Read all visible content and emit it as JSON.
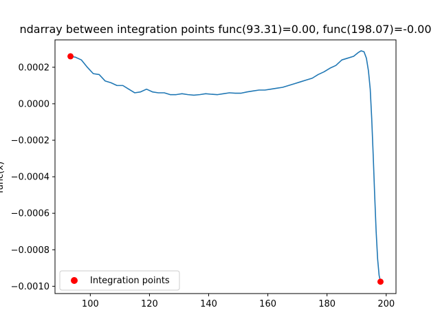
{
  "chart_data": {
    "type": "line",
    "title": "ndarray between integration points func(93.31)=0.00, func(198.07)=-0.00",
    "xlabel": "",
    "ylabel": "func(x)",
    "xlim": [
      88.07,
      203.31
    ],
    "ylim": [
      -0.00104,
      0.00035
    ],
    "grid": false,
    "legend_position": "lower-left",
    "x_ticks": [
      100,
      120,
      140,
      160,
      180,
      200
    ],
    "x_tick_labels": [
      "100",
      "120",
      "140",
      "160",
      "180",
      "200"
    ],
    "y_ticks": [
      0.0002,
      0.0,
      -0.0002,
      -0.0004,
      -0.0006,
      -0.0008,
      -0.001
    ],
    "y_tick_labels": [
      "0.0002",
      "0.0000",
      "−0.0002",
      "−0.0004",
      "−0.0006",
      "−0.0008",
      "−0.0010"
    ],
    "line_color": "#1f77b4",
    "marker_color": "#ff0000",
    "series": [
      {
        "name": "",
        "kind": "line",
        "x": [
          93.31,
          95.0,
          97.0,
          99.0,
          101.0,
          103.0,
          105.0,
          107.0,
          109.0,
          111.0,
          113.0,
          115.0,
          117.0,
          119.0,
          121.0,
          123.0,
          125.0,
          127.0,
          129.0,
          131.0,
          133.0,
          135.0,
          137.0,
          139.0,
          141.0,
          143.0,
          145.0,
          147.0,
          149.0,
          151.0,
          153.0,
          155.0,
          157.0,
          159.0,
          161.0,
          163.0,
          165.0,
          167.0,
          169.0,
          171.0,
          173.0,
          175.0,
          177.0,
          179.0,
          181.0,
          183.0,
          185.0,
          187.0,
          189.0,
          190.5,
          191.5,
          192.5,
          193.3,
          194.0,
          194.6,
          195.1,
          195.6,
          196.1,
          196.6,
          197.1,
          197.6,
          198.07
        ],
        "y": [
          0.00026,
          0.000255,
          0.00024,
          0.0002,
          0.000165,
          0.00016,
          0.000125,
          0.000115,
          0.0001,
          0.0001,
          8e-05,
          6e-05,
          6.5e-05,
          8e-05,
          6.5e-05,
          6e-05,
          6e-05,
          5e-05,
          5e-05,
          5.5e-05,
          5e-05,
          4.7e-05,
          5e-05,
          5.5e-05,
          5.2e-05,
          5e-05,
          5.5e-05,
          6e-05,
          5.8e-05,
          5.8e-05,
          6.5e-05,
          7e-05,
          7.5e-05,
          7.5e-05,
          8e-05,
          8.5e-05,
          9e-05,
          0.0001,
          0.00011,
          0.00012,
          0.00013,
          0.00014,
          0.00016,
          0.000175,
          0.000195,
          0.00021,
          0.00024,
          0.00025,
          0.00026,
          0.00028,
          0.00029,
          0.000285,
          0.00025,
          0.00018,
          8e-05,
          -8e-05,
          -0.00028,
          -0.0005,
          -0.0007,
          -0.00085,
          -0.00094,
          -0.000975
        ]
      },
      {
        "name": "Integration points",
        "kind": "scatter",
        "x": [
          93.31,
          198.07
        ],
        "y": [
          0.00026,
          -0.000975
        ]
      }
    ]
  }
}
